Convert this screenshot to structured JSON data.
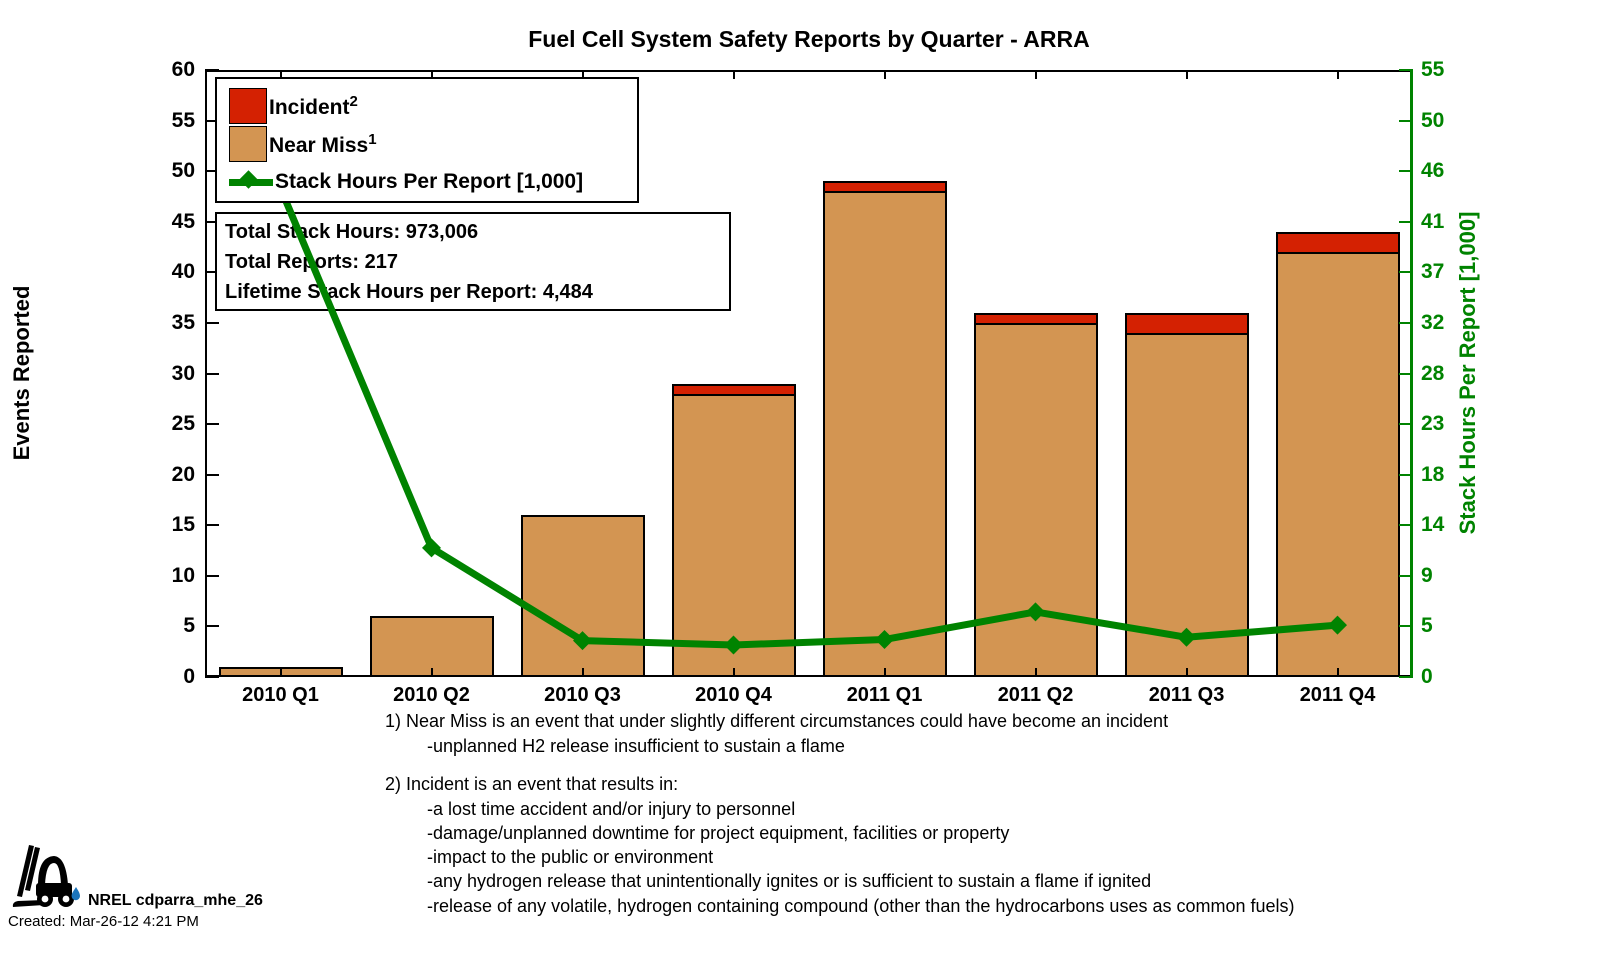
{
  "title": "Fuel Cell System Safety Reports by Quarter - ARRA",
  "chart_data": {
    "type": "bar+line",
    "categories": [
      "2010 Q1",
      "2010 Q2",
      "2010 Q3",
      "2010 Q4",
      "2011 Q1",
      "2011 Q2",
      "2011 Q3",
      "2011 Q4"
    ],
    "series": [
      {
        "name": "Near Miss",
        "type": "stacked-bar",
        "color": "#D39552",
        "values": [
          1,
          6,
          16,
          28,
          48,
          35,
          34,
          42
        ]
      },
      {
        "name": "Incident",
        "type": "stacked-bar",
        "color": "#D42102",
        "values": [
          0,
          0,
          0,
          1,
          1,
          1,
          2,
          2
        ]
      },
      {
        "name": "Stack Hours Per Report [1,000]",
        "type": "line",
        "color": "#008300",
        "axis": "right",
        "values": [
          44.3,
          11.7,
          3.3,
          2.9,
          3.4,
          5.9,
          3.6,
          4.7
        ]
      }
    ],
    "left_axis": {
      "label": "Events Reported",
      "min": 0,
      "max": 60,
      "tick_labels": [
        0,
        5,
        10,
        15,
        20,
        25,
        30,
        35,
        40,
        45,
        50,
        55,
        60
      ]
    },
    "right_axis": {
      "label": "Stack Hours Per Report [1,000]",
      "min": 0,
      "max": 55,
      "tick_labels": [
        0,
        5,
        9,
        14,
        18,
        23,
        28,
        32,
        37,
        41,
        46,
        50,
        55
      ],
      "color": "#008300"
    },
    "legend": [
      {
        "label": "Incident",
        "sup": "2",
        "swatch_color": "#D42102"
      },
      {
        "label": "Near Miss",
        "sup": "1",
        "swatch_color": "#D39552"
      },
      {
        "label": "Stack Hours Per Report [1,000]",
        "sup": "",
        "swatch_color": "#008300"
      }
    ],
    "grid": false,
    "legend_position": "top-left"
  },
  "info_box": {
    "line1": "Total Stack Hours: 973,006",
    "line2": "Total Reports: 217",
    "line3": "Lifetime Stack Hours per Report: 4,484"
  },
  "footnotes": {
    "note1": [
      "1) Near Miss is an event that under slightly different circumstances could have become an incident",
      "-unplanned H2 release insufficient to sustain a flame"
    ],
    "note2": [
      "2) Incident is an event that results in:",
      "-a lost time accident and/or injury to personnel",
      "-damage/unplanned downtime for project equipment, facilities or property",
      "-impact to the public or environment",
      "-any hydrogen release that unintentionally ignites or is sufficient to sustain a flame if ignited",
      "-release of any volatile, hydrogen containing compound (other than the hydrocarbons uses as common fuels)"
    ]
  },
  "footer": {
    "logo_id": "NREL cdparra_mhe_26",
    "created": "Created: Mar-26-12  4:21 PM",
    "logo_colors": {
      "forklift": "#000000",
      "droplet": "#1C75BC"
    }
  }
}
